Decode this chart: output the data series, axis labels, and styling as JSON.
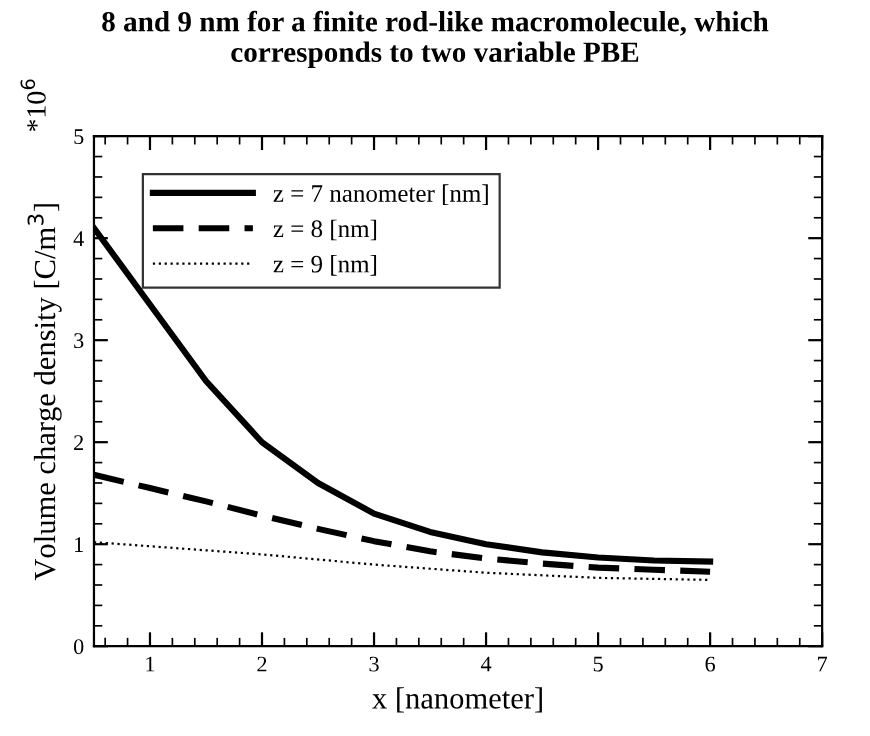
{
  "chart_data": {
    "type": "line",
    "title": "8 and 9 nm for a finite rod-like macromolecule, which\ncorresponds to two variable PBE",
    "xlabel": "x [nanometer]",
    "ylabel": "Volume charge density [C/m$^{3}$]",
    "annotations": [
      "*10$^{6}$"
    ],
    "xlim": [
      0.5,
      7
    ],
    "xticks": [
      1,
      2,
      3,
      4,
      5,
      6,
      7
    ],
    "ylim": [
      0,
      5
    ],
    "yticks": [
      0,
      1,
      2,
      3,
      4,
      5
    ],
    "grid": false,
    "legend": "top left",
    "marker": "none",
    "series": [
      {
        "name": "z = 7 nanometer [nm]",
        "color": "#000000",
        "line_style": "solid",
        "x": [
          0.5,
          1,
          1.5,
          2,
          2.5,
          3,
          3.5,
          4,
          4.5,
          5,
          5.5,
          6
        ],
        "values": [
          4.1,
          3.35,
          2.6,
          2.0,
          1.6,
          1.3,
          1.12,
          1.0,
          0.92,
          0.87,
          0.84,
          0.83
        ]
      },
      {
        "name": "z = 8 [nm]",
        "color": "#000000",
        "line_style": "dashed",
        "x": [
          0.5,
          1,
          1.5,
          2,
          2.5,
          3,
          3.5,
          4,
          4.5,
          5,
          5.5,
          6
        ],
        "values": [
          1.68,
          1.55,
          1.42,
          1.28,
          1.15,
          1.03,
          0.93,
          0.86,
          0.81,
          0.77,
          0.75,
          0.73
        ]
      },
      {
        "name": "z = 9 [nm]",
        "color": "#000000",
        "line_style": "dotted",
        "x": [
          0.5,
          1,
          2,
          3,
          4,
          5,
          6
        ],
        "values": [
          1.02,
          0.98,
          0.9,
          0.8,
          0.72,
          0.67,
          0.65
        ]
      }
    ]
  }
}
